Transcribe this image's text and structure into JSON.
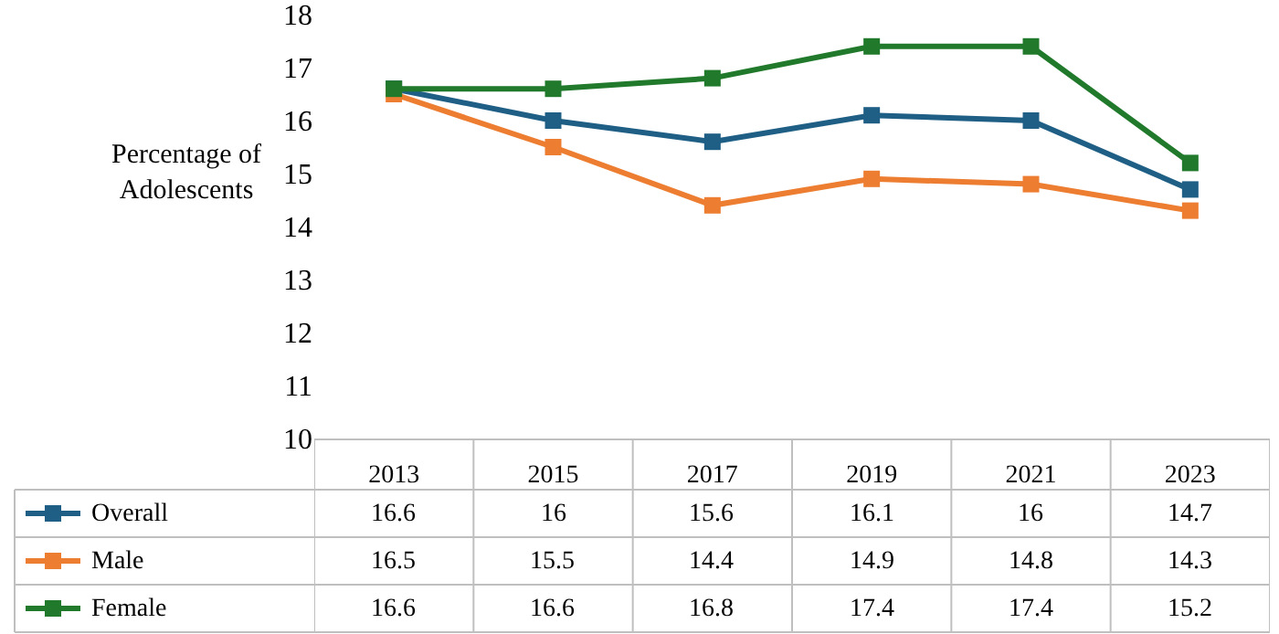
{
  "chart_data": {
    "type": "line",
    "ylabel": "Percentage of Adolescents",
    "categories": [
      "2013",
      "2015",
      "2017",
      "2019",
      "2021",
      "2023"
    ],
    "series": [
      {
        "name": "Overall",
        "color": "#1f5f85",
        "values": [
          16.6,
          16,
          15.6,
          16.1,
          16,
          14.7
        ]
      },
      {
        "name": "Male",
        "color": "#ed7d31",
        "values": [
          16.5,
          15.5,
          14.4,
          14.9,
          14.8,
          14.3
        ]
      },
      {
        "name": "Female",
        "color": "#217a2c",
        "values": [
          16.6,
          16.6,
          16.8,
          17.4,
          17.4,
          15.2
        ]
      }
    ],
    "ylim": [
      10,
      18
    ],
    "yticks": [
      10,
      11,
      12,
      13,
      14,
      15,
      16,
      17,
      18
    ],
    "grid": false,
    "marker": "square",
    "line_style": "solid",
    "data_labels": true,
    "legend": "bottom left"
  }
}
